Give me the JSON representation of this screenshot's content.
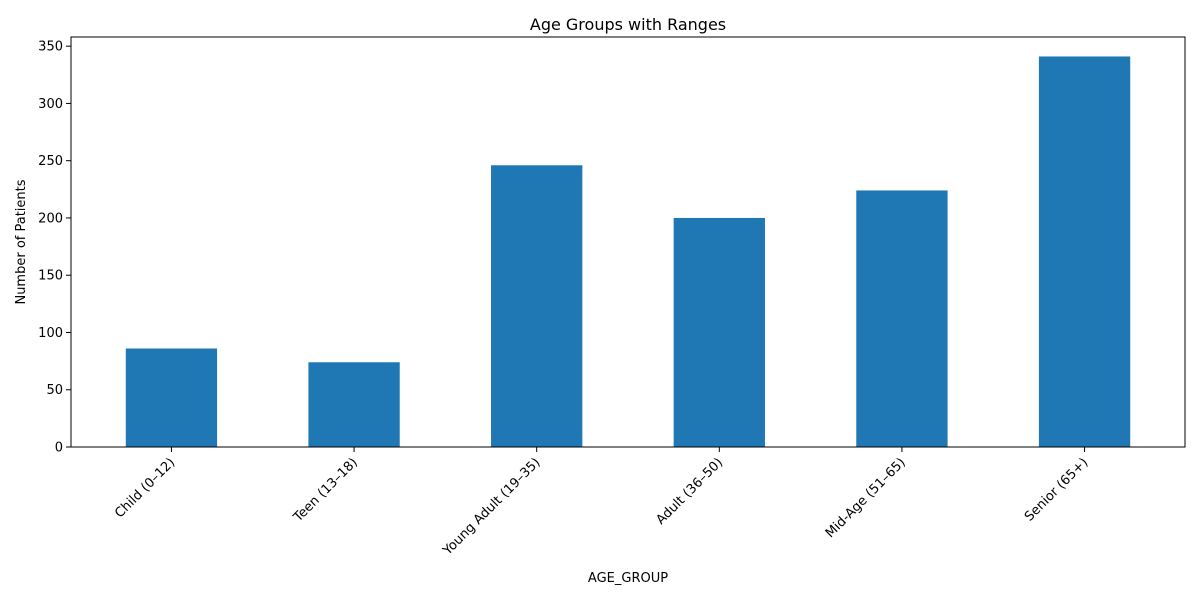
{
  "chart_data": {
    "type": "bar",
    "title": "Age Groups with Ranges",
    "xlabel": "AGE_GROUP",
    "ylabel": "Number of Patients",
    "categories": [
      "Child (0–12)",
      "Teen (13–18)",
      "Young Adult (19–35)",
      "Adult (36–50)",
      "Mid-Age (51–65)",
      "Senior (65+)"
    ],
    "values": [
      86,
      74,
      246,
      200,
      224,
      341
    ],
    "ylim": [
      0,
      358
    ],
    "yticks": [
      0,
      50,
      100,
      150,
      200,
      250,
      300,
      350
    ],
    "bar_color": "#1f77b4",
    "grid": false,
    "legend": "none"
  }
}
